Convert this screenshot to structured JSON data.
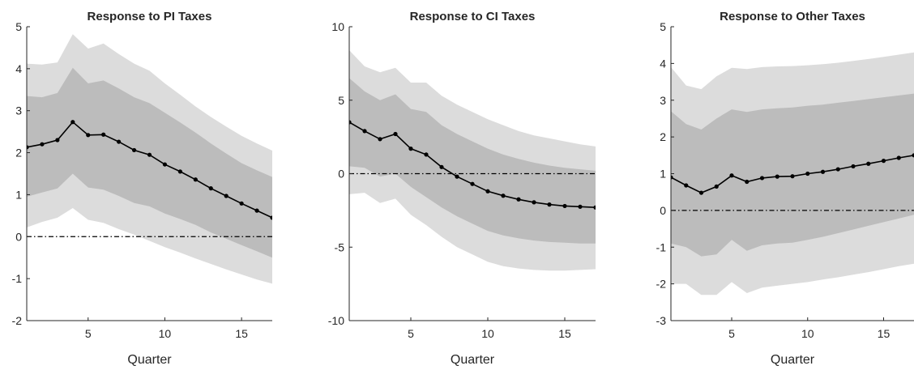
{
  "chart_data": [
    {
      "type": "line",
      "title": "Response to PI Taxes",
      "xlabel": "Quarter",
      "ylabel": "",
      "xlim": [
        1,
        17
      ],
      "ylim": [
        -2,
        5
      ],
      "xticks": [
        "5",
        "10",
        "15"
      ],
      "yticks": [
        "-2",
        "-1",
        "0",
        "1",
        "2",
        "3",
        "4",
        "5"
      ],
      "x": [
        1,
        2,
        3,
        4,
        5,
        6,
        7,
        8,
        9,
        10,
        11,
        12,
        13,
        14,
        15,
        16,
        17
      ],
      "series": [
        {
          "values": [
            2.13,
            2.2,
            2.3,
            2.73,
            2.42,
            2.43,
            2.26,
            2.06,
            1.95,
            1.72,
            1.55,
            1.36,
            1.15,
            0.97,
            0.79,
            0.62,
            0.45
          ]
        }
      ],
      "bands": [
        {
          "lower": [
            0.22,
            0.35,
            0.45,
            0.68,
            0.4,
            0.33,
            0.18,
            0.05,
            -0.1,
            -0.25,
            -0.38,
            -0.52,
            -0.65,
            -0.78,
            -0.9,
            -1.02,
            -1.12
          ],
          "upper": [
            4.12,
            4.1,
            4.15,
            4.82,
            4.48,
            4.6,
            4.35,
            4.12,
            3.95,
            3.65,
            3.38,
            3.1,
            2.85,
            2.62,
            2.4,
            2.22,
            2.05
          ],
          "color": "#dcdcdc"
        },
        {
          "lower": [
            0.95,
            1.05,
            1.15,
            1.5,
            1.17,
            1.12,
            0.97,
            0.8,
            0.72,
            0.55,
            0.42,
            0.28,
            0.1,
            -0.05,
            -0.2,
            -0.35,
            -0.5
          ],
          "upper": [
            3.35,
            3.32,
            3.42,
            4.02,
            3.65,
            3.72,
            3.53,
            3.32,
            3.18,
            2.95,
            2.72,
            2.48,
            2.22,
            1.98,
            1.75,
            1.58,
            1.42
          ],
          "color": "#bcbcbc"
        }
      ],
      "zero_line": true,
      "line_color": "#000000"
    },
    {
      "type": "line",
      "title": "Response to CI Taxes",
      "xlabel": "Quarter",
      "ylabel": "",
      "xlim": [
        1,
        17
      ],
      "ylim": [
        -10,
        10
      ],
      "xticks": [
        "5",
        "10",
        "15"
      ],
      "yticks": [
        "-10",
        "-5",
        "0",
        "5",
        "10"
      ],
      "x": [
        1,
        2,
        3,
        4,
        5,
        6,
        7,
        8,
        9,
        10,
        11,
        12,
        13,
        14,
        15,
        16,
        17
      ],
      "series": [
        {
          "values": [
            3.5,
            2.9,
            2.35,
            2.7,
            1.7,
            1.3,
            0.45,
            -0.2,
            -0.7,
            -1.2,
            -1.5,
            -1.75,
            -1.95,
            -2.1,
            -2.2,
            -2.25,
            -2.3
          ]
        }
      ],
      "bands": [
        {
          "lower": [
            -1.4,
            -1.3,
            -2.0,
            -1.7,
            -2.8,
            -3.5,
            -4.3,
            -5.0,
            -5.5,
            -6.0,
            -6.3,
            -6.45,
            -6.55,
            -6.6,
            -6.6,
            -6.55,
            -6.5
          ],
          "upper": [
            8.4,
            7.3,
            6.9,
            7.2,
            6.2,
            6.2,
            5.3,
            4.7,
            4.2,
            3.7,
            3.3,
            2.9,
            2.6,
            2.4,
            2.2,
            2.0,
            1.85
          ],
          "color": "#dcdcdc"
        },
        {
          "lower": [
            0.5,
            0.4,
            -0.2,
            0.0,
            -0.9,
            -1.6,
            -2.3,
            -2.9,
            -3.4,
            -3.9,
            -4.2,
            -4.4,
            -4.55,
            -4.65,
            -4.7,
            -4.75,
            -4.75
          ],
          "upper": [
            6.5,
            5.6,
            5.0,
            5.4,
            4.4,
            4.2,
            3.3,
            2.7,
            2.2,
            1.7,
            1.3,
            1.0,
            0.75,
            0.55,
            0.4,
            0.3,
            0.2
          ],
          "color": "#bcbcbc"
        }
      ],
      "zero_line": true,
      "line_color": "#000000"
    },
    {
      "type": "line",
      "title": "Response to Other Taxes",
      "xlabel": "Quarter",
      "ylabel": "",
      "xlim": [
        1,
        17
      ],
      "ylim": [
        -3,
        5
      ],
      "xticks": [
        "5",
        "10",
        "15"
      ],
      "yticks": [
        "-3",
        "-2",
        "-1",
        "0",
        "1",
        "2",
        "3",
        "4",
        "5"
      ],
      "x": [
        1,
        2,
        3,
        4,
        5,
        6,
        7,
        8,
        9,
        10,
        11,
        12,
        13,
        14,
        15,
        16,
        17
      ],
      "series": [
        {
          "values": [
            0.9,
            0.68,
            0.48,
            0.65,
            0.95,
            0.78,
            0.88,
            0.92,
            0.93,
            1.0,
            1.05,
            1.12,
            1.2,
            1.27,
            1.35,
            1.43,
            1.5
          ]
        }
      ],
      "bands": [
        {
          "lower": [
            -2.0,
            -2.0,
            -2.3,
            -2.3,
            -1.95,
            -2.25,
            -2.1,
            -2.05,
            -2.0,
            -1.95,
            -1.88,
            -1.82,
            -1.75,
            -1.68,
            -1.6,
            -1.52,
            -1.45
          ],
          "upper": [
            3.9,
            3.4,
            3.3,
            3.65,
            3.88,
            3.85,
            3.9,
            3.92,
            3.93,
            3.95,
            3.98,
            4.02,
            4.07,
            4.12,
            4.18,
            4.24,
            4.3
          ],
          "color": "#dcdcdc"
        },
        {
          "lower": [
            -0.9,
            -1.0,
            -1.25,
            -1.2,
            -0.8,
            -1.1,
            -0.95,
            -0.9,
            -0.88,
            -0.8,
            -0.72,
            -0.62,
            -0.52,
            -0.42,
            -0.32,
            -0.22,
            -0.12
          ],
          "upper": [
            2.7,
            2.35,
            2.2,
            2.5,
            2.75,
            2.68,
            2.75,
            2.78,
            2.8,
            2.85,
            2.88,
            2.93,
            2.98,
            3.03,
            3.08,
            3.13,
            3.18
          ],
          "color": "#bcbcbc"
        }
      ],
      "zero_line": true,
      "line_color": "#000000"
    }
  ]
}
